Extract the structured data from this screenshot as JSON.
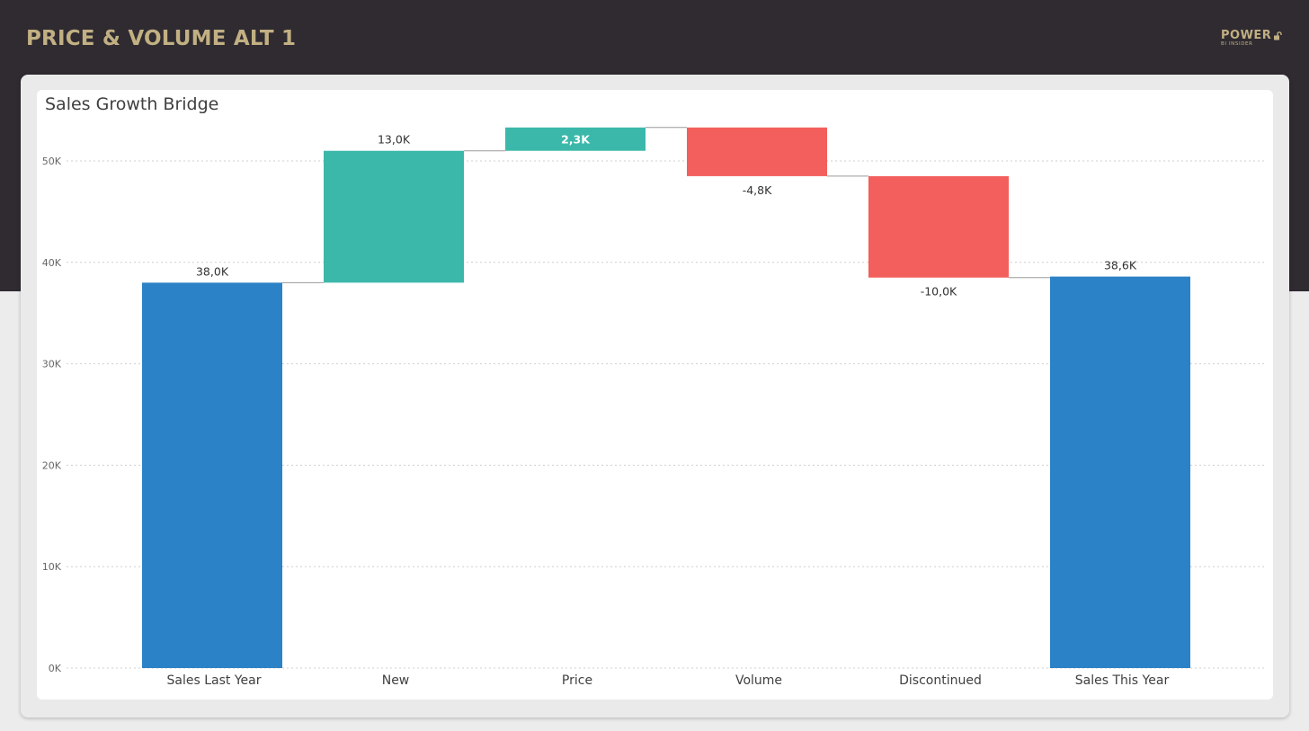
{
  "page": {
    "title": "PRICE & VOLUME ALT 1",
    "brand_main": "POWER",
    "brand_sub": "BI INSIDER"
  },
  "colors": {
    "header_bg": "#2f2b31",
    "title_gold": "#c2b083",
    "total": "#2b82c6",
    "increase": "#3bb8aa",
    "decrease": "#f25f5c"
  },
  "chart_data": {
    "type": "waterfall",
    "title": "Sales Growth Bridge",
    "categories": [
      "Sales Last Year",
      "New",
      "Price",
      "Volume",
      "Discontinued",
      "Sales This Year"
    ],
    "values": [
      38.0,
      13.0,
      2.3,
      -4.8,
      -10.0,
      38.6
    ],
    "kinds": [
      "total",
      "increase",
      "increase",
      "decrease",
      "decrease",
      "total"
    ],
    "data_labels": [
      "38,0K",
      "13,0K",
      "2,3K",
      "-4,8K",
      "-10,0K",
      "38,6K"
    ],
    "y_ticks": [
      0,
      10,
      20,
      30,
      40,
      50
    ],
    "y_tick_labels": [
      "0K",
      "10K",
      "20K",
      "30K",
      "40K",
      "50K"
    ],
    "y_unit": "thousands",
    "ylim": [
      0,
      53.3
    ],
    "grid": true,
    "legend": "none"
  }
}
